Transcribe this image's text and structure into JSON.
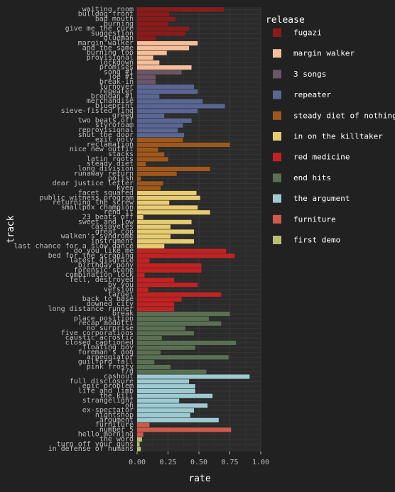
{
  "chart_data": {
    "type": "bar",
    "orientation": "horizontal",
    "xlabel": "rate",
    "ylabel": "track",
    "xlim": [
      0,
      1
    ],
    "xticks": [
      "0.00",
      "0.25",
      "0.50",
      "0.75",
      "1.00"
    ],
    "legend_title": "release",
    "legend_position": "right",
    "grid": true,
    "releases": [
      {
        "name": "fugazi",
        "color": "#8b1a1a"
      },
      {
        "name": "margin walker",
        "color": "#f5bf99"
      },
      {
        "name": "3 songs",
        "color": "#6b5566"
      },
      {
        "name": "repeater",
        "color": "#5a6794"
      },
      {
        "name": "steady diet of nothing",
        "color": "#a0581a"
      },
      {
        "name": "in on the killtaker",
        "color": "#e8cc72"
      },
      {
        "name": "red medicine",
        "color": "#c42222"
      },
      {
        "name": "end hits",
        "color": "#5a7052"
      },
      {
        "name": "the argument",
        "color": "#9ecbd2"
      },
      {
        "name": "furniture",
        "color": "#d05a4a"
      },
      {
        "name": "first demo",
        "color": "#b8be72"
      }
    ],
    "bars": [
      {
        "track": "waiting room",
        "release": "fugazi",
        "value": 0.7
      },
      {
        "track": "bulldog front",
        "release": "fugazi",
        "value": 0.26
      },
      {
        "track": "bad mouth",
        "release": "fugazi",
        "value": 0.31
      },
      {
        "track": "burning",
        "release": "fugazi",
        "value": 0.25
      },
      {
        "track": "give me the cure",
        "release": "fugazi",
        "value": 0.42
      },
      {
        "track": "suggestion",
        "release": "fugazi",
        "value": 0.39
      },
      {
        "track": "glueman",
        "release": "fugazi",
        "value": 0.15
      },
      {
        "track": "margin walker",
        "release": "margin walker",
        "value": 0.49
      },
      {
        "track": "and the same",
        "release": "margin walker",
        "value": 0.42
      },
      {
        "track": "burning too",
        "release": "margin walker",
        "value": 0.24
      },
      {
        "track": "provisional",
        "release": "margin walker",
        "value": 0.13
      },
      {
        "track": "lockdown",
        "release": "margin walker",
        "value": 0.18
      },
      {
        "track": "promises",
        "release": "margin walker",
        "value": 0.44
      },
      {
        "track": "song #1",
        "release": "3 songs",
        "value": 0.36
      },
      {
        "track": "joe #1",
        "release": "3 songs",
        "value": 0.15
      },
      {
        "track": "break-in",
        "release": "3 songs",
        "value": 0.15
      },
      {
        "track": "turnover",
        "release": "repeater",
        "value": 0.46
      },
      {
        "track": "repeater",
        "release": "repeater",
        "value": 0.49
      },
      {
        "track": "brendan #1",
        "release": "repeater",
        "value": 0.18
      },
      {
        "track": "merchandise",
        "release": "repeater",
        "value": 0.53
      },
      {
        "track": "blueprint",
        "release": "repeater",
        "value": 0.71
      },
      {
        "track": "sieve-fisted find",
        "release": "repeater",
        "value": 0.49
      },
      {
        "track": "greed",
        "release": "repeater",
        "value": 0.22
      },
      {
        "track": "two beats off",
        "release": "repeater",
        "value": 0.44
      },
      {
        "track": "styrofoam",
        "release": "repeater",
        "value": 0.37
      },
      {
        "track": "reprovisional",
        "release": "repeater",
        "value": 0.33
      },
      {
        "track": "shut the door",
        "release": "repeater",
        "value": 0.38
      },
      {
        "track": "exit only",
        "release": "steady diet of nothing",
        "value": 0.37
      },
      {
        "track": "reclamation",
        "release": "steady diet of nothing",
        "value": 0.75
      },
      {
        "track": "nice new outfit",
        "release": "steady diet of nothing",
        "value": 0.17
      },
      {
        "track": "stacks",
        "release": "steady diet of nothing",
        "value": 0.22
      },
      {
        "track": "latin roots",
        "release": "steady diet of nothing",
        "value": 0.25
      },
      {
        "track": "steady diet",
        "release": "steady diet of nothing",
        "value": 0.07
      },
      {
        "track": "long division",
        "release": "steady diet of nothing",
        "value": 0.59
      },
      {
        "track": "runaway return",
        "release": "steady diet of nothing",
        "value": 0.32
      },
      {
        "track": "polish",
        "release": "steady diet of nothing",
        "value": 0.03
      },
      {
        "track": "dear justice letter",
        "release": "steady diet of nothing",
        "value": 0.21
      },
      {
        "track": "kyeo",
        "release": "steady diet of nothing",
        "value": 0.19
      },
      {
        "track": "facet squared",
        "release": "in on the killtaker",
        "value": 0.48
      },
      {
        "track": "public witness program",
        "release": "in on the killtaker",
        "value": 0.51
      },
      {
        "track": "returning the screw",
        "release": "in on the killtaker",
        "value": 0.26
      },
      {
        "track": "smallpox champion",
        "release": "in on the killtaker",
        "value": 0.49
      },
      {
        "track": "rend it",
        "release": "in on the killtaker",
        "value": 0.59
      },
      {
        "track": "23 beats off",
        "release": "in on the killtaker",
        "value": 0.05
      },
      {
        "track": "sweet and low",
        "release": "in on the killtaker",
        "value": 0.44
      },
      {
        "track": "cassavetes",
        "release": "in on the killtaker",
        "value": 0.27
      },
      {
        "track": "great cop",
        "release": "in on the killtaker",
        "value": 0.46
      },
      {
        "track": "walken's syndrome",
        "release": "in on the killtaker",
        "value": 0.27
      },
      {
        "track": "instrument",
        "release": "in on the killtaker",
        "value": 0.46
      },
      {
        "track": "last chance for a slow dance",
        "release": "in on the killtaker",
        "value": 0.22
      },
      {
        "track": "do you like me",
        "release": "red medicine",
        "value": 0.72
      },
      {
        "track": "bed for the scraping",
        "release": "red medicine",
        "value": 0.79
      },
      {
        "track": "latest disgrace",
        "release": "red medicine",
        "value": 0.1
      },
      {
        "track": "birthday pony",
        "release": "red medicine",
        "value": 0.52
      },
      {
        "track": "forensic scene",
        "release": "red medicine",
        "value": 0.52
      },
      {
        "track": "combination lock",
        "release": "red medicine",
        "value": 0.06
      },
      {
        "track": "fell, destroyed",
        "release": "red medicine",
        "value": 0.3
      },
      {
        "track": "by you",
        "release": "red medicine",
        "value": 0.49
      },
      {
        "track": "version",
        "release": "red medicine",
        "value": 0.09
      },
      {
        "track": "target",
        "release": "red medicine",
        "value": 0.68
      },
      {
        "track": "back to base",
        "release": "red medicine",
        "value": 0.36
      },
      {
        "track": "downed city",
        "release": "red medicine",
        "value": 0.3
      },
      {
        "track": "long distance runner",
        "release": "red medicine",
        "value": 0.3
      },
      {
        "track": "break",
        "release": "end hits",
        "value": 0.75
      },
      {
        "track": "place position",
        "release": "end hits",
        "value": 0.58
      },
      {
        "track": "recap modotti",
        "release": "end hits",
        "value": 0.68
      },
      {
        "track": "no surprise",
        "release": "end hits",
        "value": 0.39
      },
      {
        "track": "five corporations",
        "release": "end hits",
        "value": 0.46
      },
      {
        "track": "caustic acrostic",
        "release": "end hits",
        "value": 0.2
      },
      {
        "track": "closed captioned",
        "release": "end hits",
        "value": 0.8
      },
      {
        "track": "floating boy",
        "release": "end hits",
        "value": 0.47
      },
      {
        "track": "foreman's dog",
        "release": "end hits",
        "value": 0.19
      },
      {
        "track": "arpeggiator",
        "release": "end hits",
        "value": 0.74
      },
      {
        "track": "guilford fall",
        "release": "end hits",
        "value": 0.14
      },
      {
        "track": "pink frosty",
        "release": "end hits",
        "value": 0.27
      },
      {
        "track": "f/d",
        "release": "end hits",
        "value": 0.56
      },
      {
        "track": "cashout",
        "release": "the argument",
        "value": 0.91
      },
      {
        "track": "full disclosure",
        "release": "the argument",
        "value": 0.42
      },
      {
        "track": "epic problem",
        "release": "the argument",
        "value": 0.47
      },
      {
        "track": "life and limb",
        "release": "the argument",
        "value": 0.47
      },
      {
        "track": "the kill",
        "release": "the argument",
        "value": 0.61
      },
      {
        "track": "strangelight",
        "release": "the argument",
        "value": 0.34
      },
      {
        "track": "oh",
        "release": "the argument",
        "value": 0.57
      },
      {
        "track": "ex-spectator",
        "release": "the argument",
        "value": 0.46
      },
      {
        "track": "nightshop",
        "release": "the argument",
        "value": 0.43
      },
      {
        "track": "argument",
        "release": "the argument",
        "value": 0.66
      },
      {
        "track": "furniture",
        "release": "furniture",
        "value": 0.1
      },
      {
        "track": "number 5",
        "release": "furniture",
        "value": 0.76
      },
      {
        "track": "hello morning",
        "release": "furniture",
        "value": 0.05
      },
      {
        "track": "the word",
        "release": "first demo",
        "value": 0.04
      },
      {
        "track": "turn off your guns",
        "release": "first demo",
        "value": 0.02
      },
      {
        "track": "in defense of humans",
        "release": "first demo",
        "value": 0.03
      }
    ]
  }
}
